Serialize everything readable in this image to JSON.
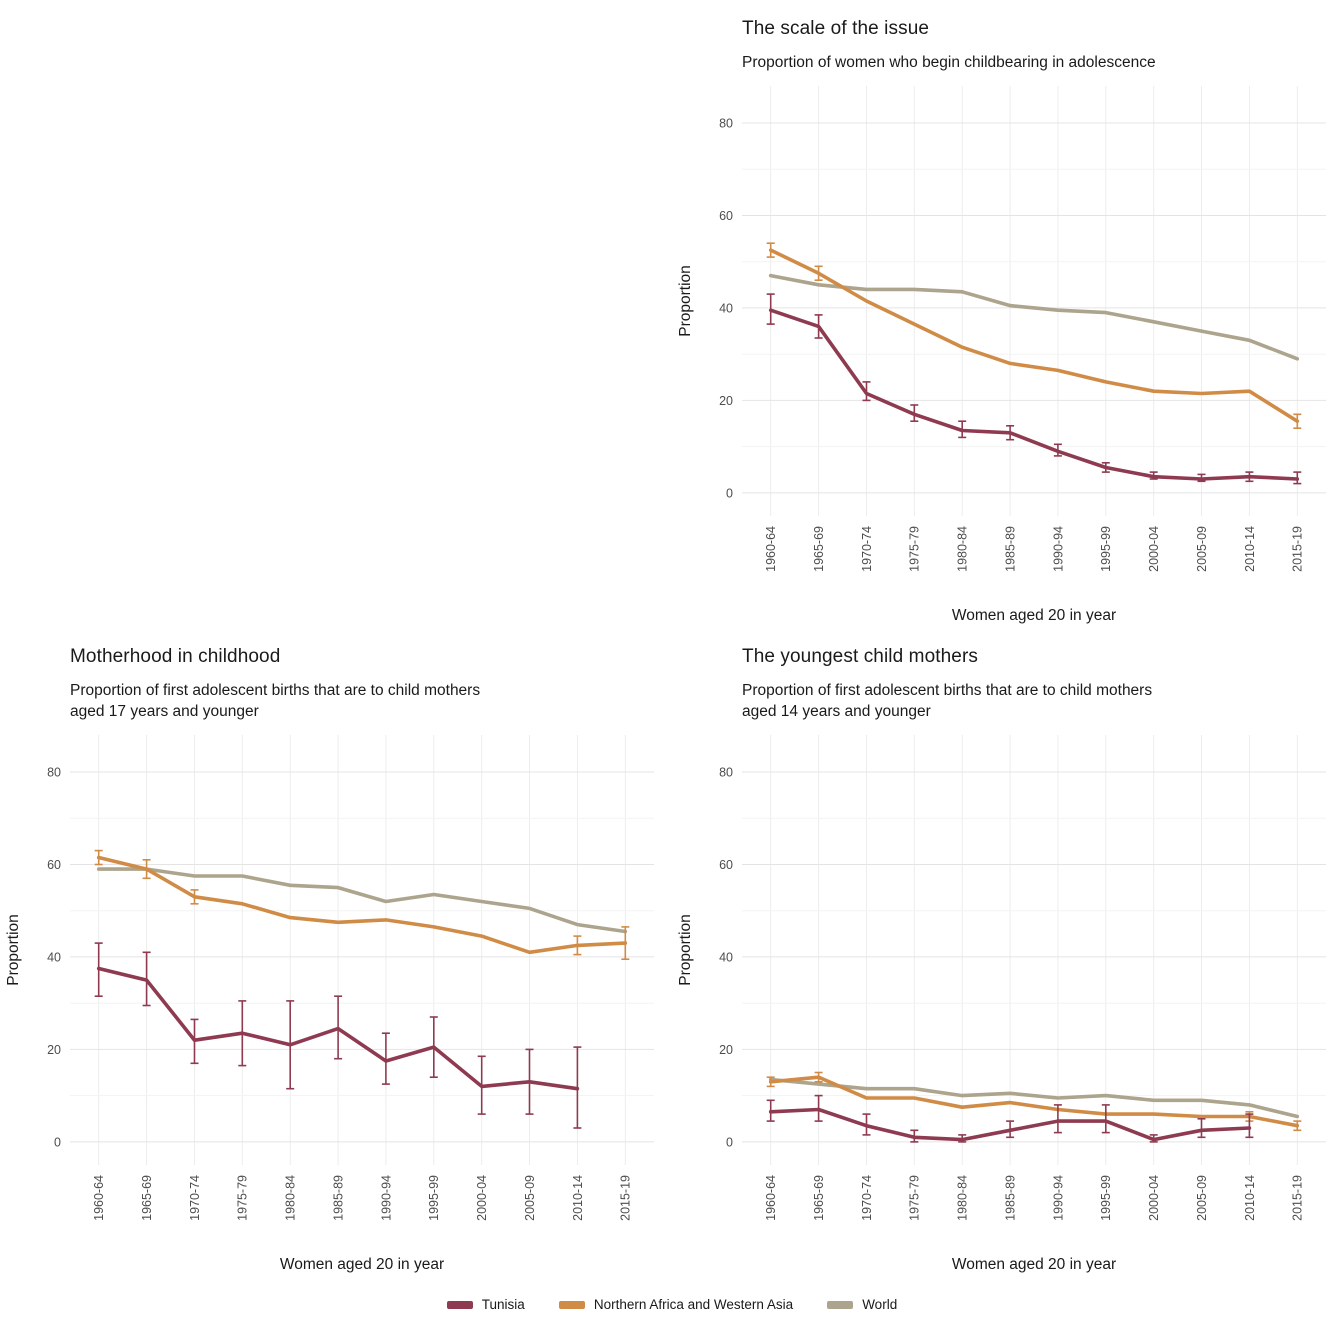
{
  "legend": {
    "position": "bottom",
    "items": [
      {
        "label": "Tunisia",
        "color": "#8E3B51"
      },
      {
        "label": "Northern Africa and Western Asia",
        "color": "#D08C46"
      },
      {
        "label": "World",
        "color": "#ACA48C"
      }
    ]
  },
  "chart_data": [
    {
      "id": "scale-of-issue",
      "type": "line",
      "title": "The scale of the issue",
      "subtitle": "Proportion of women who begin childbearing in adolescence",
      "xlabel": "Women aged 20 in year",
      "ylabel": "Proportion",
      "categories": [
        "1960-64",
        "1965-69",
        "1970-74",
        "1975-79",
        "1980-84",
        "1985-89",
        "1990-94",
        "1995-99",
        "2000-04",
        "2005-09",
        "2010-14",
        "2015-19"
      ],
      "ylim": [
        -5,
        88
      ],
      "yticks": [
        0,
        20,
        40,
        60,
        80
      ],
      "yticks_minor": [
        10,
        30,
        50,
        70
      ],
      "grid": true,
      "legend_position": "bottom",
      "series": [
        {
          "name": "World",
          "color": "#ACA48C",
          "values": [
            47,
            45,
            44,
            44,
            43.5,
            40.5,
            39.5,
            39,
            37,
            35,
            33,
            29
          ],
          "errors": [
            null,
            null,
            null,
            null,
            null,
            null,
            null,
            null,
            null,
            null,
            null,
            null
          ]
        },
        {
          "name": "Northern Africa and Western Asia",
          "color": "#D08C46",
          "values": [
            52.5,
            47.5,
            41.5,
            36.5,
            31.5,
            28,
            26.5,
            24,
            22,
            21.5,
            22,
            15.5
          ],
          "errors": [
            [
              51,
              54
            ],
            [
              46,
              49
            ],
            null,
            null,
            null,
            null,
            null,
            null,
            null,
            null,
            null,
            [
              14,
              17
            ]
          ]
        },
        {
          "name": "Tunisia",
          "color": "#8E3B51",
          "values": [
            39.5,
            36,
            21.5,
            17,
            13.5,
            13,
            9,
            5.5,
            3.5,
            3,
            3.5,
            3
          ],
          "errors": [
            [
              36.5,
              43
            ],
            [
              33.5,
              38.5
            ],
            [
              20,
              24
            ],
            [
              15.5,
              19
            ],
            [
              12,
              15.5
            ],
            [
              11.5,
              14.5
            ],
            [
              8,
              10.5
            ],
            [
              4.5,
              6.5
            ],
            [
              3,
              4.5
            ],
            [
              2.5,
              4
            ],
            [
              2.5,
              4.5
            ],
            [
              2,
              4.5
            ]
          ]
        }
      ]
    },
    {
      "id": "motherhood-in-childhood",
      "type": "line",
      "title": "Motherhood in childhood",
      "subtitle": "Proportion of first adolescent births that are to child mothers\naged 17 years and younger",
      "xlabel": "Women aged 20 in year",
      "ylabel": "Proportion",
      "categories": [
        "1960-64",
        "1965-69",
        "1970-74",
        "1975-79",
        "1980-84",
        "1985-89",
        "1990-94",
        "1995-99",
        "2000-04",
        "2005-09",
        "2010-14",
        "2015-19"
      ],
      "ylim": [
        -5,
        88
      ],
      "yticks": [
        0,
        20,
        40,
        60,
        80
      ],
      "yticks_minor": [
        10,
        30,
        50,
        70
      ],
      "grid": true,
      "legend_position": "bottom",
      "series": [
        {
          "name": "World",
          "color": "#ACA48C",
          "values": [
            59,
            59,
            57.5,
            57.5,
            55.5,
            55,
            52,
            53.5,
            52,
            50.5,
            47,
            45.5
          ],
          "errors": [
            null,
            null,
            null,
            null,
            null,
            null,
            null,
            null,
            null,
            null,
            null,
            null
          ]
        },
        {
          "name": "Northern Africa and Western Asia",
          "color": "#D08C46",
          "values": [
            61.5,
            59,
            53,
            51.5,
            48.5,
            47.5,
            48,
            46.5,
            44.5,
            41,
            42.5,
            43
          ],
          "errors": [
            [
              60,
              63
            ],
            [
              57,
              61
            ],
            [
              51.5,
              54.5
            ],
            null,
            null,
            null,
            null,
            null,
            null,
            null,
            [
              40.5,
              44.5
            ],
            [
              39.5,
              46.5
            ]
          ]
        },
        {
          "name": "Tunisia",
          "color": "#8E3B51",
          "values": [
            37.5,
            35,
            22,
            23.5,
            21,
            24.5,
            17.5,
            20.5,
            12,
            13,
            11.5,
            null
          ],
          "errors": [
            [
              31.5,
              43
            ],
            [
              29.5,
              41
            ],
            [
              17,
              26.5
            ],
            [
              16.5,
              30.5
            ],
            [
              11.5,
              30.5
            ],
            [
              18,
              31.5
            ],
            [
              12.5,
              23.5
            ],
            [
              14,
              27
            ],
            [
              6,
              18.5
            ],
            [
              6,
              20
            ],
            [
              3,
              20.5
            ],
            null
          ]
        }
      ]
    },
    {
      "id": "youngest-child-mothers",
      "type": "line",
      "title": "The youngest child mothers",
      "subtitle": "Proportion of first adolescent births that are to child mothers\naged 14 years and younger",
      "xlabel": "Women aged 20 in year",
      "ylabel": "Proportion",
      "categories": [
        "1960-64",
        "1965-69",
        "1970-74",
        "1975-79",
        "1980-84",
        "1985-89",
        "1990-94",
        "1995-99",
        "2000-04",
        "2005-09",
        "2010-14",
        "2015-19"
      ],
      "ylim": [
        -5,
        88
      ],
      "yticks": [
        0,
        20,
        40,
        60,
        80
      ],
      "yticks_minor": [
        10,
        30,
        50,
        70
      ],
      "grid": true,
      "legend_position": "bottom",
      "series": [
        {
          "name": "World",
          "color": "#ACA48C",
          "values": [
            13.5,
            12.5,
            11.5,
            11.5,
            10,
            10.5,
            9.5,
            10,
            9,
            9,
            8,
            5.5
          ],
          "errors": [
            null,
            null,
            null,
            null,
            null,
            null,
            null,
            null,
            null,
            null,
            null,
            null
          ]
        },
        {
          "name": "Northern Africa and Western Asia",
          "color": "#D08C46",
          "values": [
            13,
            14,
            9.5,
            9.5,
            7.5,
            8.5,
            7,
            6,
            6,
            5.5,
            5.5,
            3.5
          ],
          "errors": [
            [
              12,
              14
            ],
            [
              13,
              15
            ],
            null,
            null,
            null,
            null,
            null,
            null,
            null,
            null,
            [
              4.5,
              6.5
            ],
            [
              2.5,
              4.5
            ]
          ]
        },
        {
          "name": "Tunisia",
          "color": "#8E3B51",
          "values": [
            6.5,
            7,
            3.5,
            1,
            0.5,
            2.5,
            4.5,
            4.5,
            0.5,
            2.5,
            3,
            null
          ],
          "errors": [
            [
              4.5,
              9
            ],
            [
              4.5,
              10
            ],
            [
              1.5,
              6
            ],
            [
              0,
              2.5
            ],
            [
              0,
              1.5
            ],
            [
              1,
              4.5
            ],
            [
              2,
              8
            ],
            [
              2,
              8
            ],
            [
              0,
              1.5
            ],
            [
              1,
              5
            ],
            [
              1,
              6
            ],
            null
          ]
        }
      ]
    }
  ]
}
